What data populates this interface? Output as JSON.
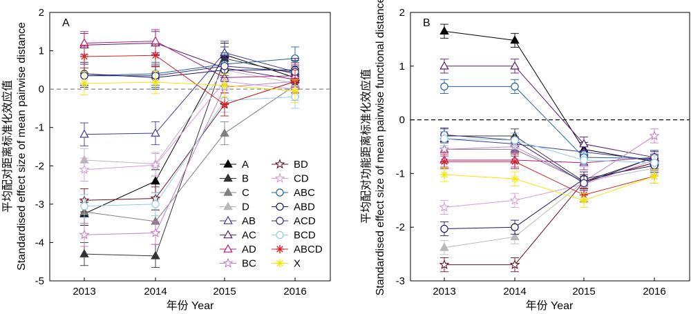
{
  "x_axis_label": "年份  Year",
  "panel_a": {
    "label": "A",
    "ylabel_cn": "平均配对距离标准化效应值",
    "ylabel_en": "Standardised effect size of mean pairwise distance"
  },
  "panel_b": {
    "label": "B",
    "ylabel_cn": "平均配对功能距离标准化效应值",
    "ylabel_en": "Standardised effect size of mean pairwise functional distance"
  },
  "legend": [
    {
      "name": "A",
      "color": "#000000",
      "marker": "triangle-filled"
    },
    {
      "name": "B",
      "color": "#333333",
      "marker": "triangle-filled"
    },
    {
      "name": "C",
      "color": "#7f7f7f",
      "marker": "triangle-filled"
    },
    {
      "name": "D",
      "color": "#b8b8b8",
      "marker": "triangle-filled"
    },
    {
      "name": "AB",
      "color": "#3a3a9a",
      "marker": "triangle-open"
    },
    {
      "name": "AC",
      "color": "#5b1a6e",
      "marker": "triangle-open"
    },
    {
      "name": "AD",
      "color": "#b0187f",
      "marker": "triangle-open"
    },
    {
      "name": "BC",
      "color": "#c77dc7",
      "marker": "star-open"
    },
    {
      "name": "BD",
      "color": "#6b0f1a",
      "marker": "star-open"
    },
    {
      "name": "CD",
      "color": "#d99ad9",
      "marker": "star-open"
    },
    {
      "name": "ABC",
      "color": "#1f5f9a",
      "marker": "circle-open"
    },
    {
      "name": "ABD",
      "color": "#1a1a5e",
      "marker": "circle-open"
    },
    {
      "name": "ACD",
      "color": "#2d2d80",
      "marker": "circle-open"
    },
    {
      "name": "BCD",
      "color": "#8ecde6",
      "marker": "circle-open"
    },
    {
      "name": "ABCD",
      "color": "#d62020",
      "marker": "asterisk"
    },
    {
      "name": "X",
      "color": "#f2e600",
      "marker": "asterisk"
    }
  ],
  "chart_data": [
    {
      "type": "line",
      "panel": "A",
      "x": [
        2013,
        2014,
        2015,
        2016
      ],
      "xticks": [
        "2013",
        "2014",
        "2015",
        "2016"
      ],
      "ylim": [
        -5,
        2
      ],
      "yticks": [
        -5,
        -4,
        -3,
        -2,
        -1,
        0,
        1,
        2
      ],
      "reference_line": 0,
      "error_bar_halfwidth": 0.3,
      "series": [
        {
          "name": "A",
          "values": [
            -3.25,
            -2.4,
            0.9,
            0.3
          ]
        },
        {
          "name": "B",
          "values": [
            -4.3,
            -4.35,
            0.8,
            0.4
          ]
        },
        {
          "name": "C",
          "values": [
            -3.2,
            -3.45,
            -1.15,
            0.1
          ]
        },
        {
          "name": "D",
          "values": [
            -1.85,
            -1.95,
            0.5,
            0.15
          ]
        },
        {
          "name": "AB",
          "values": [
            -1.18,
            -1.15,
            0.95,
            0.45
          ]
        },
        {
          "name": "AC",
          "values": [
            1.15,
            1.2,
            0.55,
            0.25
          ]
        },
        {
          "name": "AD",
          "values": [
            1.2,
            1.25,
            0.3,
            0.35
          ]
        },
        {
          "name": "BC",
          "values": [
            -3.8,
            -3.75,
            0.05,
            0.2
          ]
        },
        {
          "name": "BD",
          "values": [
            -2.9,
            -2.85,
            -0.4,
            0.2
          ]
        },
        {
          "name": "CD",
          "values": [
            -2.1,
            -1.98,
            0.2,
            0.0
          ]
        },
        {
          "name": "ABC",
          "values": [
            0.35,
            0.4,
            0.65,
            0.8
          ]
        },
        {
          "name": "ABD",
          "values": [
            0.4,
            0.3,
            0.5,
            0.5
          ]
        },
        {
          "name": "ACD",
          "values": [
            0.35,
            0.35,
            0.6,
            0.45
          ]
        },
        {
          "name": "BCD",
          "values": [
            -3.05,
            -3.0,
            -0.3,
            -0.2
          ]
        },
        {
          "name": "ABCD",
          "values": [
            0.85,
            0.88,
            -0.4,
            0.2
          ]
        },
        {
          "name": "X",
          "values": [
            0.15,
            0.18,
            0.1,
            -0.05
          ]
        }
      ]
    },
    {
      "type": "line",
      "panel": "B",
      "x": [
        2013,
        2014,
        2015,
        2016
      ],
      "xticks": [
        "2013",
        "2014",
        "2015",
        "2016"
      ],
      "ylim": [
        -3,
        2
      ],
      "yticks": [
        -3,
        -2,
        -1,
        0,
        1,
        2
      ],
      "reference_line": 0,
      "error_bar_halfwidth": 0.13,
      "series": [
        {
          "name": "A",
          "values": [
            1.65,
            1.48,
            -0.55,
            -0.78
          ]
        },
        {
          "name": "B",
          "values": [
            -0.3,
            -0.3,
            -1.15,
            -0.7
          ]
        },
        {
          "name": "C",
          "values": [
            -0.55,
            -0.55,
            -1.15,
            -0.8
          ]
        },
        {
          "name": "D",
          "values": [
            -2.38,
            -2.18,
            -1.15,
            -0.9
          ]
        },
        {
          "name": "AB",
          "values": [
            -0.35,
            -0.45,
            -0.6,
            -0.75
          ]
        },
        {
          "name": "AC",
          "values": [
            1.0,
            1.0,
            -0.45,
            -0.7
          ]
        },
        {
          "name": "AD",
          "values": [
            -0.75,
            -0.75,
            -0.8,
            -0.7
          ]
        },
        {
          "name": "BC",
          "values": [
            -0.55,
            -0.5,
            -1.15,
            -0.3
          ]
        },
        {
          "name": "BD",
          "values": [
            -2.7,
            -2.7,
            -1.15,
            -0.8
          ]
        },
        {
          "name": "CD",
          "values": [
            -1.63,
            -1.5,
            -1.2,
            -0.75
          ]
        },
        {
          "name": "ABC",
          "values": [
            0.62,
            0.62,
            -0.7,
            -0.72
          ]
        },
        {
          "name": "ABD",
          "values": [
            -2.03,
            -2.0,
            -1.1,
            -0.85
          ]
        },
        {
          "name": "ACD",
          "values": [
            -0.28,
            -0.38,
            -1.18,
            -0.7
          ]
        },
        {
          "name": "BCD",
          "values": [
            -0.35,
            -0.38,
            -0.75,
            -0.8
          ]
        },
        {
          "name": "ABCD",
          "values": [
            -0.78,
            -0.78,
            -1.4,
            -1.05
          ]
        },
        {
          "name": "X",
          "values": [
            -1.02,
            -1.1,
            -1.5,
            -1.05
          ]
        }
      ]
    }
  ]
}
